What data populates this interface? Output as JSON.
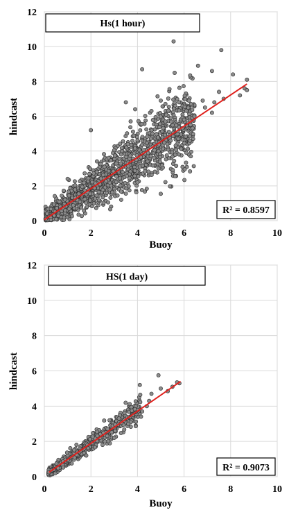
{
  "chart_data": [
    {
      "type": "scatter",
      "title": "Hs(1 hour)",
      "xlabel": "Buoy",
      "ylabel": "hindcast",
      "xlim": [
        0,
        10
      ],
      "ylim": [
        0,
        12
      ],
      "xticks": [
        "0",
        "2",
        "4",
        "6",
        "8",
        "10"
      ],
      "yticks": [
        "0",
        "2",
        "4",
        "6",
        "8",
        "10",
        "12"
      ],
      "grid": true,
      "annotation": "R² = 0.8597",
      "marker_color": "#8c8c8c",
      "trendline": {
        "x": [
          0,
          8.7
        ],
        "y": [
          0.05,
          7.85
        ],
        "color": "#e0201c"
      },
      "points": {
        "x": [
          5.55,
          7.6,
          6.6,
          4.2,
          7.2,
          8.7,
          8.1,
          8.6,
          7.5,
          3.5,
          3.9,
          5.0,
          6.9,
          7.7,
          7.2,
          6.3,
          6.0,
          5.2,
          4.6,
          2.0,
          1.0,
          4.0,
          4.9,
          3.3,
          6.8,
          7.3,
          8.4,
          8.7
        ],
        "y": [
          10.3,
          9.8,
          8.9,
          8.7,
          8.6,
          8.1,
          8.4,
          7.6,
          7.4,
          6.8,
          6.4,
          6.9,
          6.5,
          7.0,
          6.2,
          6.7,
          5.8,
          5.7,
          6.3,
          5.2,
          2.4,
          2.2,
          3.0,
          1.2,
          6.9,
          6.8,
          7.2,
          7.5
        ]
      }
    },
    {
      "type": "scatter",
      "title": "HS(1 day)",
      "xlabel": "Buoy",
      "ylabel": "hindcast",
      "xlim": [
        0,
        10
      ],
      "ylim": [
        0,
        12
      ],
      "xticks": [
        "0",
        "2",
        "4",
        "6",
        "8",
        "10"
      ],
      "yticks": [
        "0",
        "2",
        "4",
        "6",
        "8",
        "10",
        "12"
      ],
      "grid": true,
      "annotation": "R² = 0.9073",
      "marker_color": "#8c8c8c",
      "trendline": {
        "x": [
          0.2,
          5.85
        ],
        "y": [
          0.25,
          5.4
        ],
        "color": "#e0201c"
      },
      "points": {
        "x": [
          4.9,
          5.8,
          4.1,
          4.6,
          5.0,
          5.3,
          3.8,
          4.4,
          3.2,
          2.8,
          5.5,
          4.5,
          3.0,
          2.6,
          1.8,
          4.2,
          3.6,
          5.7
        ],
        "y": [
          5.75,
          5.3,
          5.2,
          4.7,
          5.0,
          4.85,
          3.5,
          4.0,
          3.3,
          3.2,
          5.1,
          4.3,
          2.2,
          2.0,
          1.2,
          3.7,
          3.0,
          5.35
        ]
      }
    }
  ]
}
